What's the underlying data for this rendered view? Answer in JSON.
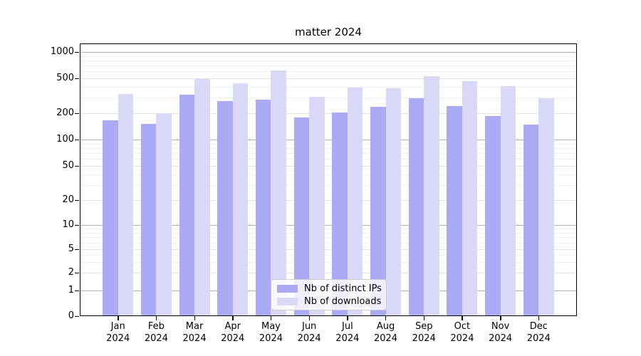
{
  "title": "matter 2024",
  "legend": {
    "items": [
      {
        "label": "Nb of distinct IPs",
        "color": "#aaaaf5"
      },
      {
        "label": "Nb of downloads",
        "color": "#d9d9f7"
      }
    ]
  },
  "chart_data": {
    "type": "bar",
    "title": "matter 2024",
    "categories": [
      "Jan 2024",
      "Feb 2024",
      "Mar 2024",
      "Apr 2024",
      "May 2024",
      "Jun 2024",
      "Jul 2024",
      "Aug 2024",
      "Sep 2024",
      "Oct 2024",
      "Nov 2024",
      "Dec 2024"
    ],
    "month_line1": [
      "Jan",
      "Feb",
      "Mar",
      "Apr",
      "May",
      "Jun",
      "Jul",
      "Aug",
      "Sep",
      "Oct",
      "Nov",
      "Dec"
    ],
    "month_line2": "2024",
    "series": [
      {
        "name": "Nb of distinct IPs",
        "color": "#aaaaf5",
        "values": [
          165,
          150,
          325,
          275,
          285,
          180,
          205,
          235,
          295,
          240,
          185,
          148
        ]
      },
      {
        "name": "Nb of downloads",
        "color": "#d9d9f7",
        "values": [
          330,
          200,
          495,
          440,
          615,
          310,
          390,
          385,
          530,
          465,
          410,
          295
        ]
      }
    ],
    "xlabel": "",
    "ylabel": "",
    "yscale": "symlog",
    "y_ticks": [
      0,
      1,
      2,
      5,
      10,
      20,
      50,
      100,
      200,
      500,
      1000
    ],
    "y_tick_labels": [
      "0",
      "1",
      "2",
      "5",
      "10",
      "20",
      "50",
      "100",
      "200",
      "500",
      "1000"
    ],
    "ylim": [
      0,
      1300
    ],
    "grid": true,
    "legend_position": "lower center"
  }
}
